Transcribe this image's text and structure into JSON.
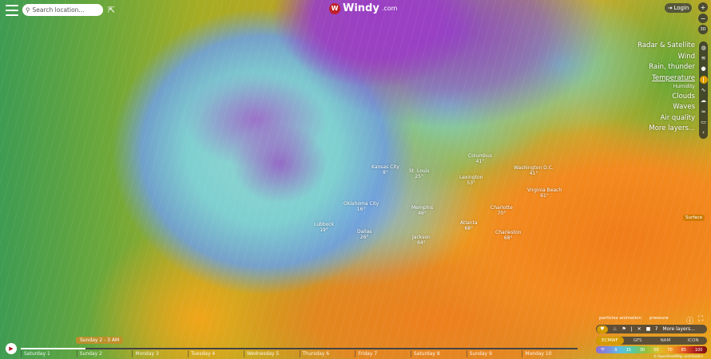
{
  "header": {
    "search_placeholder": "Search location...",
    "logo_text": "Windy",
    "logo_suffix": ".com",
    "logo_badge": "W",
    "login": "Login"
  },
  "zoom_controls": {
    "zoom_in": "+",
    "zoom_out": "−",
    "view3d": "3D"
  },
  "layers": [
    {
      "label": "Radar & Satellite",
      "icon": "globe-icon"
    },
    {
      "label": "Wind",
      "icon": "wind-icon"
    },
    {
      "label": "Rain, thunder",
      "icon": "drop-icon"
    },
    {
      "label": "Temperature",
      "icon": "thermometer-icon",
      "active": true
    },
    {
      "label": "Humidity",
      "icon": "humidity-icon",
      "small": true
    },
    {
      "label": "Clouds",
      "icon": "cloud-icon"
    },
    {
      "label": "Waves",
      "icon": "waves-icon"
    },
    {
      "label": "Air quality",
      "icon": "air-icon"
    },
    {
      "label": "More layers...",
      "icon": "chevron-left-icon"
    }
  ],
  "surface_label": "Surface",
  "options": {
    "particles": "particles animation",
    "pressure": "pressure"
  },
  "favorites": {
    "more": "More layers..."
  },
  "models": [
    {
      "label": "ECMWF",
      "active": true
    },
    {
      "label": "GFS"
    },
    {
      "label": "NAM"
    },
    {
      "label": "ICON"
    }
  ],
  "legend": {
    "unit": "°F",
    "values": [
      "-5",
      "15",
      "30",
      "50",
      "70",
      "85",
      "100"
    ]
  },
  "attribution": "© OpenStreetMap contributors",
  "timeline": {
    "current": "Sunday 2 - 3 AM",
    "progress_fraction": 0.116,
    "days": [
      "Saturday 1",
      "Sunday 2",
      "Monday 3",
      "Tuesday 4",
      "Wednesday 5",
      "Thursday 6",
      "Friday 7",
      "Saturday 8",
      "Sunday 9",
      "Monday 10"
    ]
  },
  "cities": [
    {
      "name": "Kansas City",
      "temp": "8°"
    },
    {
      "name": "St. Louis",
      "temp": "25°"
    },
    {
      "name": "Columbus",
      "temp": "41°"
    },
    {
      "name": "Washington D.C.",
      "temp": "41°"
    },
    {
      "name": "Lexington",
      "temp": "53°"
    },
    {
      "name": "Oklahoma City",
      "temp": "16°"
    },
    {
      "name": "Memphis",
      "temp": "46°"
    },
    {
      "name": "Charlotte",
      "temp": "70°"
    },
    {
      "name": "Lubbock",
      "temp": "19°"
    },
    {
      "name": "Dallas",
      "temp": "26°"
    },
    {
      "name": "Atlanta",
      "temp": "68°"
    },
    {
      "name": "Jackson",
      "temp": "64°"
    },
    {
      "name": "Charleston",
      "temp": "68°"
    },
    {
      "name": "Virginia Beach",
      "temp": "61°"
    }
  ],
  "colors": {
    "accent": "#d59b00",
    "brand": "#c0202a"
  }
}
